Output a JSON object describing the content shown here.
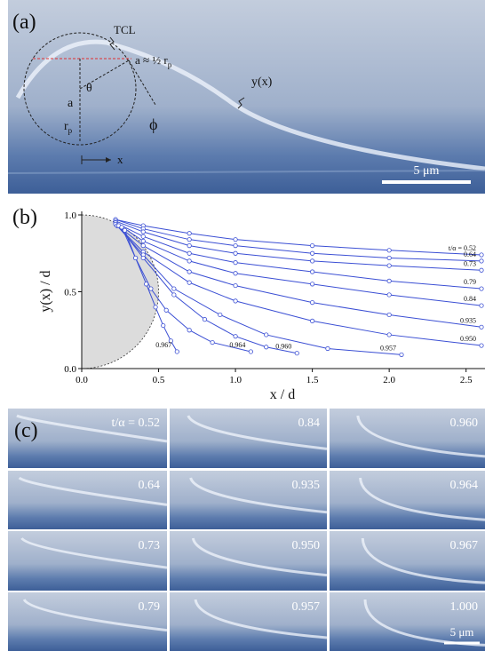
{
  "panel_a": {
    "label": "(a)",
    "tcl": "TCL",
    "a_relation": {
      "main": "a ≈ ½ r",
      "sub": "p"
    },
    "a": "a",
    "theta": "θ",
    "phi": "ϕ",
    "rp": {
      "main": "r",
      "sub": "p"
    },
    "x": "x",
    "yx": "y(x)",
    "scale_bar": "5 μm"
  },
  "panel_b": {
    "label": "(b)"
  },
  "chart_data": {
    "type": "line",
    "xlabel": "x / d",
    "ylabel": "y(x) / d",
    "xlim": [
      0,
      2.6
    ],
    "ylim": [
      0,
      1.0
    ],
    "xticks": [
      {
        "value": 0,
        "label": "0.0"
      },
      0.5,
      {
        "value": 1,
        "label": "1.0"
      },
      1.5,
      {
        "value": 2,
        "label": "2.0"
      },
      2.5
    ],
    "yticks": [
      {
        "value": 0,
        "label": "0.0"
      },
      0.5,
      {
        "value": 1,
        "label": "1.0"
      }
    ],
    "series": [
      {
        "name": "t/α = 0.52",
        "color": "#3b4fd4",
        "x": [
          0.22,
          0.4,
          0.7,
          1.0,
          1.5,
          2.0,
          2.6
        ],
        "values": [
          0.97,
          0.93,
          0.88,
          0.84,
          0.8,
          0.77,
          0.74
        ]
      },
      {
        "name": "0.64",
        "color": "#3b4fd4",
        "x": [
          0.22,
          0.4,
          0.7,
          1.0,
          1.5,
          2.0,
          2.6
        ],
        "values": [
          0.97,
          0.91,
          0.84,
          0.8,
          0.75,
          0.72,
          0.7
        ]
      },
      {
        "name": "0.73",
        "color": "#3b4fd4",
        "x": [
          0.22,
          0.4,
          0.7,
          1.0,
          1.5,
          2.0,
          2.6
        ],
        "values": [
          0.96,
          0.89,
          0.8,
          0.75,
          0.7,
          0.67,
          0.64
        ]
      },
      {
        "name": "0.79",
        "color": "#3b4fd4",
        "x": [
          0.22,
          0.4,
          0.7,
          1.0,
          1.5,
          2.0,
          2.6
        ],
        "values": [
          0.95,
          0.86,
          0.75,
          0.69,
          0.63,
          0.57,
          0.52
        ]
      },
      {
        "name": "0.84",
        "color": "#3b4fd4",
        "x": [
          0.22,
          0.4,
          0.7,
          1.0,
          1.5,
          2.0,
          2.6
        ],
        "values": [
          0.95,
          0.83,
          0.7,
          0.62,
          0.55,
          0.48,
          0.41
        ]
      },
      {
        "name": "0.935",
        "color": "#3b4fd4",
        "x": [
          0.22,
          0.4,
          0.7,
          1.0,
          1.5,
          2.0,
          2.6
        ],
        "values": [
          0.94,
          0.8,
          0.63,
          0.54,
          0.43,
          0.35,
          0.27
        ]
      },
      {
        "name": "0.950",
        "color": "#3b4fd4",
        "x": [
          0.23,
          0.4,
          0.7,
          1.0,
          1.5,
          2.0,
          2.6
        ],
        "values": [
          0.93,
          0.76,
          0.56,
          0.44,
          0.31,
          0.22,
          0.15
        ]
      },
      {
        "name": "0.957",
        "color": "#3b4fd4",
        "x": [
          0.23,
          0.4,
          0.6,
          0.9,
          1.2,
          1.6,
          2.08
        ],
        "values": [
          0.93,
          0.74,
          0.52,
          0.35,
          0.22,
          0.13,
          0.09
        ]
      },
      {
        "name": "0.960",
        "color": "#3b4fd4",
        "x": [
          0.24,
          0.4,
          0.6,
          0.8,
          1.0,
          1.2,
          1.4
        ],
        "values": [
          0.93,
          0.72,
          0.48,
          0.32,
          0.21,
          0.14,
          0.1
        ]
      },
      {
        "name": "0.964",
        "color": "#3b4fd4",
        "x": [
          0.26,
          0.35,
          0.45,
          0.55,
          0.7,
          0.85,
          1.1
        ],
        "values": [
          0.92,
          0.72,
          0.52,
          0.38,
          0.25,
          0.17,
          0.11
        ]
      },
      {
        "name": "0.967",
        "color": "#3b4fd4",
        "x": [
          0.28,
          0.35,
          0.42,
          0.48,
          0.53,
          0.58,
          0.62
        ],
        "values": [
          0.9,
          0.72,
          0.55,
          0.4,
          0.28,
          0.18,
          0.11
        ]
      }
    ]
  },
  "panel_c": {
    "label": "(c)",
    "frames": [
      "t/α = 0.52",
      "0.64",
      "0.73",
      "0.79",
      "0.84",
      "0.935",
      "0.950",
      "0.957",
      "0.960",
      "0.964",
      "0.967",
      "1.000"
    ],
    "scale_bar": "5 μm"
  }
}
